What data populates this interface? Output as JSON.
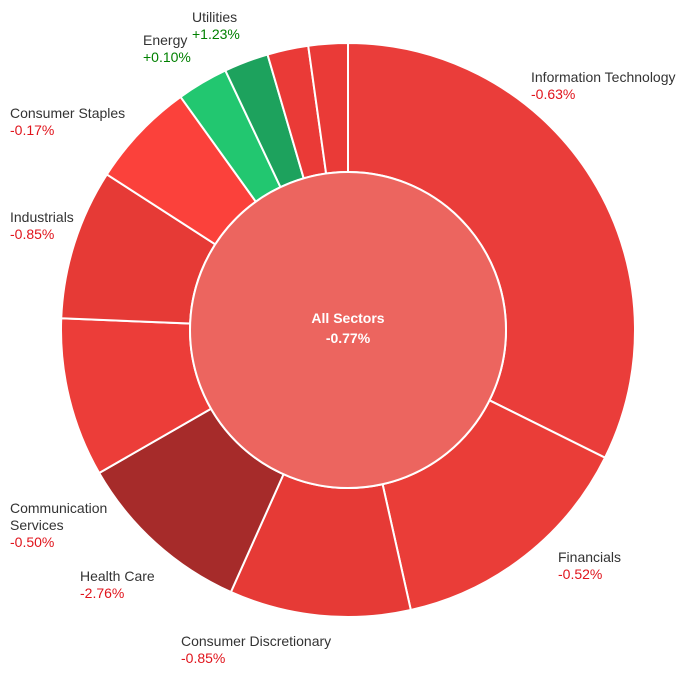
{
  "chart_data": {
    "type": "pie",
    "variant": "donut",
    "center": {
      "name": "All Sectors",
      "change": "-0.77%",
      "color": "#ec655f"
    },
    "positive_color": "#008000",
    "negative_color": "#e0141c",
    "slices": [
      {
        "name": "Information Technology",
        "lines": [
          "Information Technology"
        ],
        "change": "-0.63%",
        "value": 33.6,
        "color": "#ea3d3a"
      },
      {
        "name": "Financials",
        "lines": [
          "Financials"
        ],
        "change": "-0.52%",
        "value": 14.7,
        "color": "#ea3d38"
      },
      {
        "name": "Consumer Discretionary",
        "lines": [
          "Consumer Discretionary"
        ],
        "change": "-0.85%",
        "value": 10.6,
        "color": "#e63a36"
      },
      {
        "name": "Health Care",
        "lines": [
          "Health Care"
        ],
        "change": "-2.76%",
        "value": 10.4,
        "color": "#a62b2a"
      },
      {
        "name": "Communication Services",
        "lines": [
          "Communication",
          "Services"
        ],
        "change": "-0.50%",
        "value": 9.3,
        "color": "#ec3d39"
      },
      {
        "name": "Industrials",
        "lines": [
          "Industrials"
        ],
        "change": "-0.85%",
        "value": 8.8,
        "color": "#e63a36"
      },
      {
        "name": "Consumer Staples",
        "lines": [
          "Consumer Staples"
        ],
        "change": "-0.17%",
        "value": 6.2,
        "color": "#fb413b"
      },
      {
        "name": "Energy",
        "lines": [
          "Energy"
        ],
        "change": "+0.10%",
        "value": 3.0,
        "color": "#22c770"
      },
      {
        "name": "Utilities",
        "lines": [
          "Utilities"
        ],
        "change": "+1.23%",
        "value": 2.6,
        "color": "#1da25d"
      },
      {
        "name": "",
        "lines": [],
        "change": "",
        "value": 2.4,
        "color": "#ea3a37"
      },
      {
        "name": "",
        "lines": [],
        "change": "",
        "value": 2.3,
        "color": "#ea3a37"
      }
    ]
  }
}
